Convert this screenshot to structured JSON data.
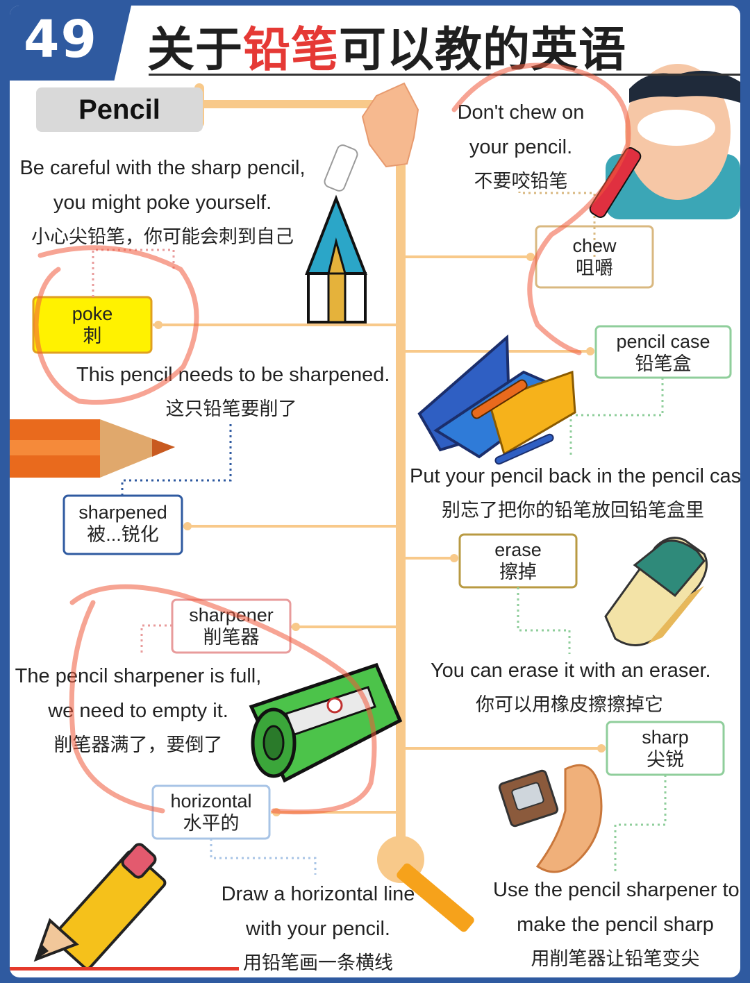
{
  "header": {
    "number": "49",
    "title_part1": "关于",
    "title_highlight": "铅笔",
    "title_part2": "可以教的英语"
  },
  "tab_label": "Pencil",
  "vocab": {
    "poke": {
      "en": "poke",
      "zh": "刺"
    },
    "sharpened": {
      "en": "sharpened",
      "zh": "被...锐化"
    },
    "sharpener": {
      "en": "sharpener",
      "zh": "削笔器"
    },
    "horizontal": {
      "en": "horizontal",
      "zh": "水平的"
    },
    "chew": {
      "en": "chew",
      "zh": "咀嚼"
    },
    "pencil_case": {
      "en": "pencil case",
      "zh": "铅笔盒"
    },
    "erase": {
      "en": "erase",
      "zh": "擦掉"
    },
    "sharp": {
      "en": "sharp",
      "zh": "尖锐"
    }
  },
  "sentences": {
    "careful": {
      "en1": "Be careful with the sharp pencil,",
      "en2": "you might poke yourself.",
      "zh": "小心尖铅笔，你可能会刺到自己"
    },
    "needs_sharpened": {
      "en": "This pencil needs to be sharpened.",
      "zh": "这只铅笔要削了"
    },
    "sharpener_full": {
      "en1": "The pencil sharpener is full,",
      "en2": "we need to empty it.",
      "zh": "削笔器满了，要倒了"
    },
    "horizontal_line": {
      "en1": "Draw a horizontal line",
      "en2": "with your pencil.",
      "zh": "用铅笔画一条横线"
    },
    "dont_chew": {
      "en1": "Don't chew on",
      "en2": "your pencil.",
      "zh": "不要咬铅笔"
    },
    "put_back": {
      "en": "Put your pencil back in the pencil case.",
      "zh": "别忘了把你的铅笔放回铅笔盒里"
    },
    "erase_it": {
      "en": "You can erase it with an eraser.",
      "zh": "你可以用橡皮擦擦掉它"
    },
    "use_sharpener": {
      "en1": "Use the pencil sharpener to",
      "en2": "make the pencil sharp",
      "zh": "用削笔器让铅笔变尖"
    }
  },
  "colors": {
    "trunk": "#f8c98a",
    "poke_fill": "#fff200",
    "poke_border": "#e0a020",
    "blue_border": "#2f5aa0",
    "pink_border": "#e89b9b",
    "gold_border": "#c9a85a",
    "green_border": "#8fce9b",
    "annotation": "#f05a3c"
  },
  "icons": [
    "hand-pointing-icon",
    "blue-pencil-icon",
    "orange-pencil-icon",
    "boy-chewing-icon",
    "pencil-case-icon",
    "eraser-icon",
    "green-sharpener-icon",
    "yellow-pencil-icon",
    "sharpener-shavings-icon"
  ]
}
